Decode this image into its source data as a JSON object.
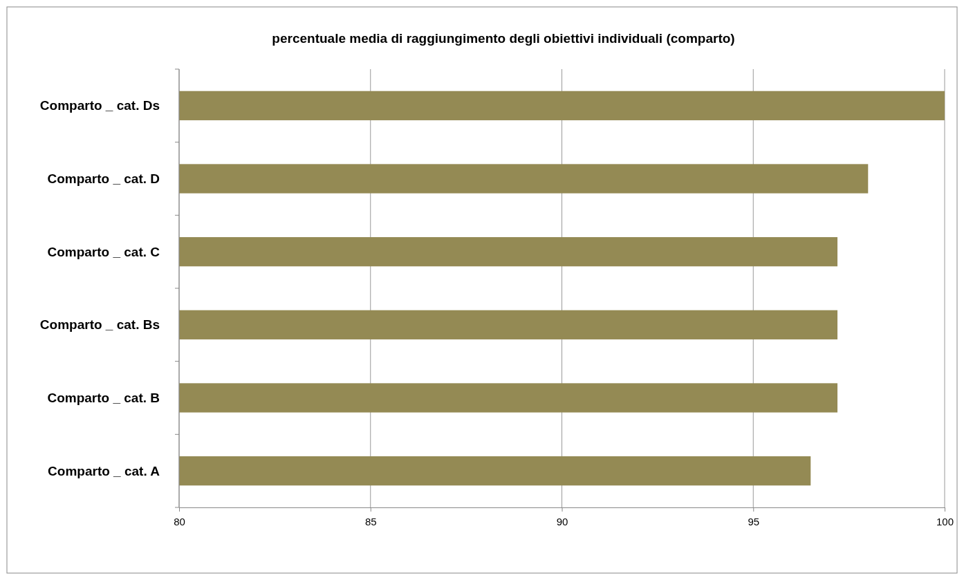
{
  "chart_data": {
    "type": "bar",
    "orientation": "horizontal",
    "title": "percentuale media di raggiungimento degli obiettivi individuali (comparto)",
    "categories": [
      "Comparto _ cat. Ds",
      "Comparto _ cat. D",
      "Comparto _ cat. C",
      "Comparto _ cat. Bs",
      "Comparto _ cat. B",
      "Comparto _ cat. A"
    ],
    "values": [
      100,
      98.0,
      97.2,
      97.2,
      97.2,
      96.5
    ],
    "color": "#948a54",
    "xlim": [
      80,
      100
    ],
    "xticks": [
      80,
      85,
      90,
      95,
      100
    ],
    "grid": "x"
  }
}
